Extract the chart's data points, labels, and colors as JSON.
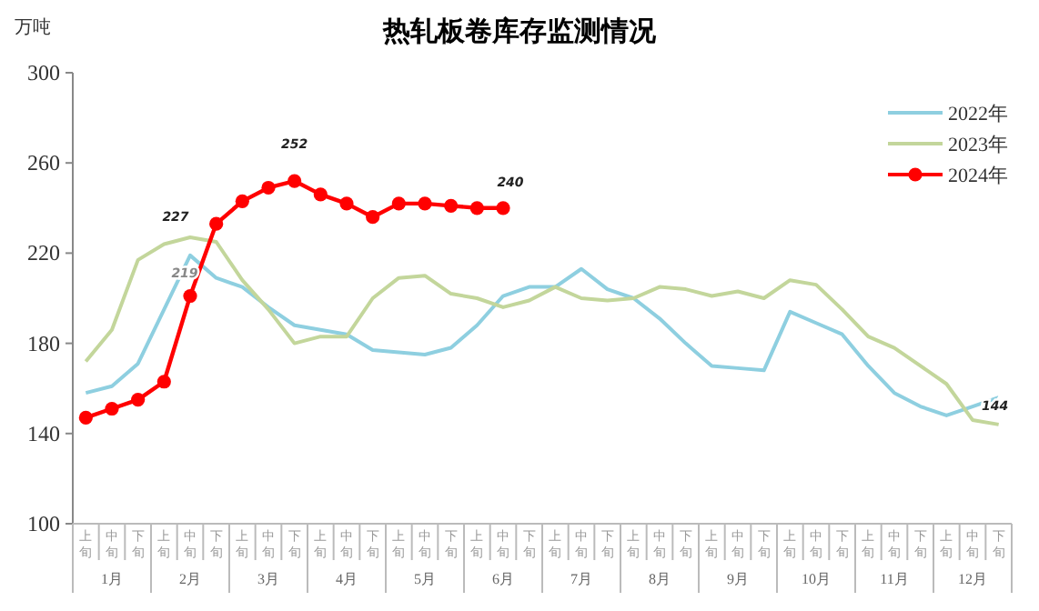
{
  "chart_data": {
    "type": "line",
    "title": "热轧板卷库存监测情况",
    "ylabel": "万吨",
    "categories": [
      "上旬",
      "中旬",
      "下旬",
      "上旬",
      "中旬",
      "下旬",
      "上旬",
      "中旬",
      "下旬",
      "上旬",
      "中旬",
      "下旬",
      "上旬",
      "中旬",
      "下旬",
      "上旬",
      "中旬",
      "下旬",
      "上旬",
      "中旬",
      "下旬",
      "上旬",
      "中旬",
      "下旬",
      "上旬",
      "中旬",
      "下旬",
      "上旬",
      "中旬",
      "下旬",
      "上旬",
      "中旬",
      "下旬",
      "上旬",
      "中旬",
      "下旬"
    ],
    "annotations": [
      "1月",
      "2月",
      "3月",
      "4月",
      "5月",
      "6月",
      "7月",
      "8月",
      "9月",
      "10月",
      "11月",
      "12月"
    ],
    "ylim": [
      100,
      300
    ],
    "yticks": [
      100,
      140,
      180,
      220,
      260,
      300
    ],
    "grid": false,
    "legend": "top right",
    "series": [
      {
        "name": "2022年",
        "color": "#8ecfe0",
        "marker": "none",
        "values": [
          158,
          161,
          171,
          195,
          219,
          209,
          205,
          196,
          188,
          186,
          184,
          177,
          176,
          175,
          178,
          188,
          201,
          205,
          205,
          213,
          204,
          200,
          191,
          180,
          170,
          169,
          168,
          194,
          189,
          184,
          170,
          158,
          152,
          148,
          152,
          156
        ],
        "value_labels": [
          null,
          null,
          null,
          null,
          "219",
          null,
          null,
          null,
          null,
          null,
          null,
          null,
          null,
          null,
          null,
          null,
          null,
          null,
          null,
          null,
          null,
          null,
          null,
          null,
          null,
          null,
          null,
          null,
          null,
          null,
          null,
          null,
          null,
          null,
          null,
          null
        ]
      },
      {
        "name": "2023年",
        "color": "#c3d69b",
        "marker": "none",
        "values": [
          172,
          186,
          217,
          224,
          227,
          225,
          208,
          195,
          180,
          183,
          183,
          200,
          209,
          210,
          202,
          200,
          196,
          199,
          205,
          200,
          199,
          200,
          205,
          204,
          201,
          203,
          200,
          208,
          206,
          195,
          183,
          178,
          170,
          162,
          146,
          144
        ],
        "value_labels": [
          null,
          null,
          null,
          null,
          "227",
          null,
          null,
          null,
          null,
          null,
          null,
          null,
          null,
          null,
          null,
          null,
          null,
          null,
          null,
          null,
          null,
          null,
          null,
          null,
          null,
          null,
          null,
          null,
          null,
          null,
          null,
          null,
          null,
          null,
          null,
          "144"
        ]
      },
      {
        "name": "2024年",
        "color": "#ff0000",
        "marker": "circle",
        "values": [
          147,
          151,
          155,
          163,
          201,
          233,
          243,
          249,
          252,
          246,
          242,
          236,
          242,
          242,
          241,
          240,
          240,
          null,
          null,
          null,
          null,
          null,
          null,
          null,
          null,
          null,
          null,
          null,
          null,
          null,
          null,
          null,
          null,
          null,
          null,
          null
        ],
        "value_labels": [
          null,
          null,
          null,
          null,
          null,
          null,
          null,
          null,
          "252",
          null,
          null,
          null,
          null,
          null,
          null,
          null,
          "240",
          null,
          null,
          null,
          null,
          null,
          null,
          null,
          null,
          null,
          null,
          null,
          null,
          null,
          null,
          null,
          null,
          null,
          null,
          null
        ]
      }
    ]
  }
}
